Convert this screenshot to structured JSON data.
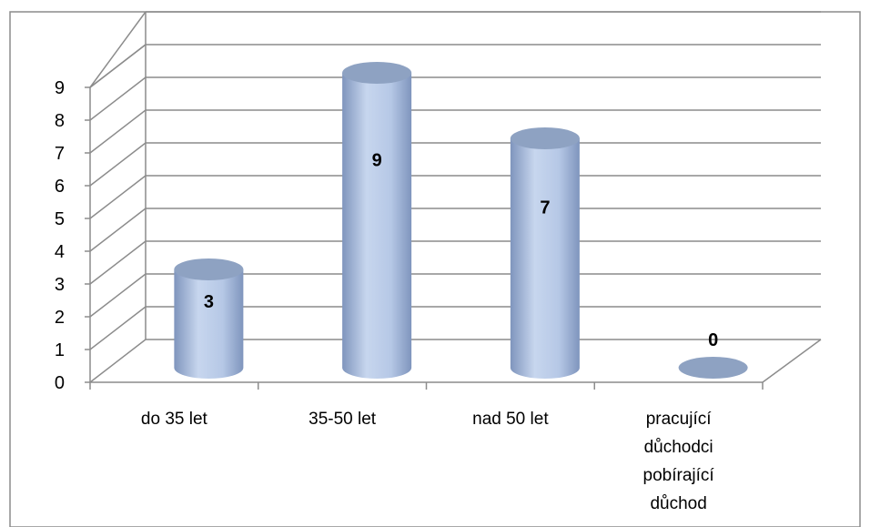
{
  "chart_data": {
    "type": "bar",
    "style": "3d-cylinder",
    "categories": [
      [
        "do 35 let"
      ],
      [
        "35-50 let"
      ],
      [
        "nad 50 let"
      ],
      [
        "pracující",
        "důchodci",
        "pobírající",
        "důchod"
      ]
    ],
    "values": [
      3,
      9,
      7,
      0
    ],
    "data_labels": [
      "3",
      "9",
      "7",
      "0"
    ],
    "yticks": [
      "0",
      "1",
      "2",
      "3",
      "4",
      "5",
      "6",
      "7",
      "8",
      "9"
    ],
    "ylim": [
      0,
      9
    ],
    "grid": true,
    "legend": "none",
    "title": "",
    "xlabel": "",
    "ylabel": "",
    "colors": {
      "bar_light": "#c7d6ee",
      "bar_mid": "#9fb4d8",
      "bar_dark": "#7f95bd",
      "bar_top": "#8ea2c2",
      "grid": "#8c8c8c",
      "frame": "#8c8c8c"
    }
  }
}
